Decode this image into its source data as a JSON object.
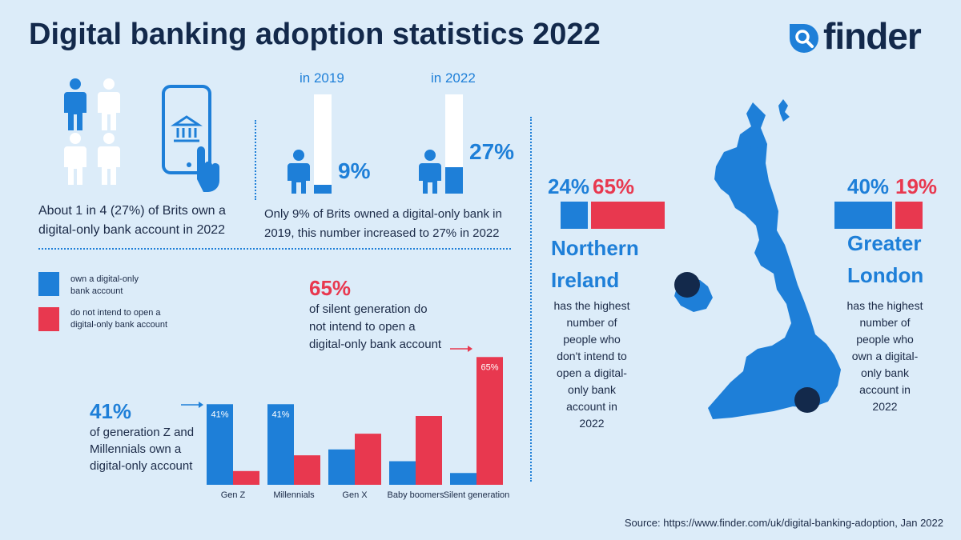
{
  "header": {
    "title": "Digital banking adoption statistics 2022",
    "logo_text": "finder"
  },
  "colors": {
    "blue": "#1e7fd8",
    "red": "#e8384f",
    "navy": "#13294b",
    "background": "#dcecf9"
  },
  "intro": {
    "text_line1": "About 1 in 4 (27%) of Brits own a",
    "text_line2": "digital-only bank account in 2022",
    "people_total": 4,
    "people_highlighted": 1
  },
  "growth": {
    "items": [
      {
        "year_label": "in 2019",
        "percent_label": "9%",
        "value": 9
      },
      {
        "year_label": "in 2022",
        "percent_label": "27%",
        "value": 27
      }
    ],
    "text_line1": "Only 9% of Brits owned a digital-only bank in",
    "text_line2": "2019, this number increased to 27% in 2022"
  },
  "legend": {
    "own_line1": "own a digital-only",
    "own_line2": "bank account",
    "not_line1": "do not intend to open a",
    "not_line2": "digital-only bank account"
  },
  "callouts": {
    "genz": {
      "percent": "41%",
      "line1": "of generation Z and",
      "line2": "Millennials own a",
      "line3": "digital-only account"
    },
    "silent": {
      "percent": "65%",
      "line1": "of silent generation do",
      "line2": "not intend to open a",
      "line3": "digital-only bank account"
    }
  },
  "chart_data": {
    "type": "bar",
    "title": "",
    "xlabel": "",
    "ylabel": "",
    "ylim": [
      0,
      70
    ],
    "categories": [
      "Gen Z",
      "Millennials",
      "Gen X",
      "Baby boomers",
      "Silent generation"
    ],
    "series": [
      {
        "name": "own a digital-only bank account",
        "values": [
          41,
          41,
          18,
          12,
          6
        ]
      },
      {
        "name": "do not intend to open a digital-only bank account",
        "values": [
          7,
          15,
          26,
          35,
          65
        ]
      }
    ],
    "data_labels": [
      "41%",
      "41%",
      "",
      "",
      "65%"
    ]
  },
  "regions": {
    "northern_ireland": {
      "own_percent": 24,
      "own_label": "24%",
      "not_percent": 65,
      "not_label": "65%",
      "name_line1": "Northern",
      "name_line2": "Ireland",
      "desc": [
        "has the highest",
        "number of",
        "people who",
        "don't intend to",
        "open a digital-",
        "only bank",
        "account in",
        "2022"
      ]
    },
    "greater_london": {
      "own_percent": 40,
      "own_label": "40%",
      "not_percent": 19,
      "not_label": "19%",
      "name_line1": "Greater",
      "name_line2": "London",
      "desc": [
        "has the highest",
        "number of",
        "people who",
        "own a digital-",
        "only bank",
        "account in",
        "2022"
      ]
    }
  },
  "source": "Source: https://www.finder.com/uk/digital-banking-adoption, Jan 2022"
}
